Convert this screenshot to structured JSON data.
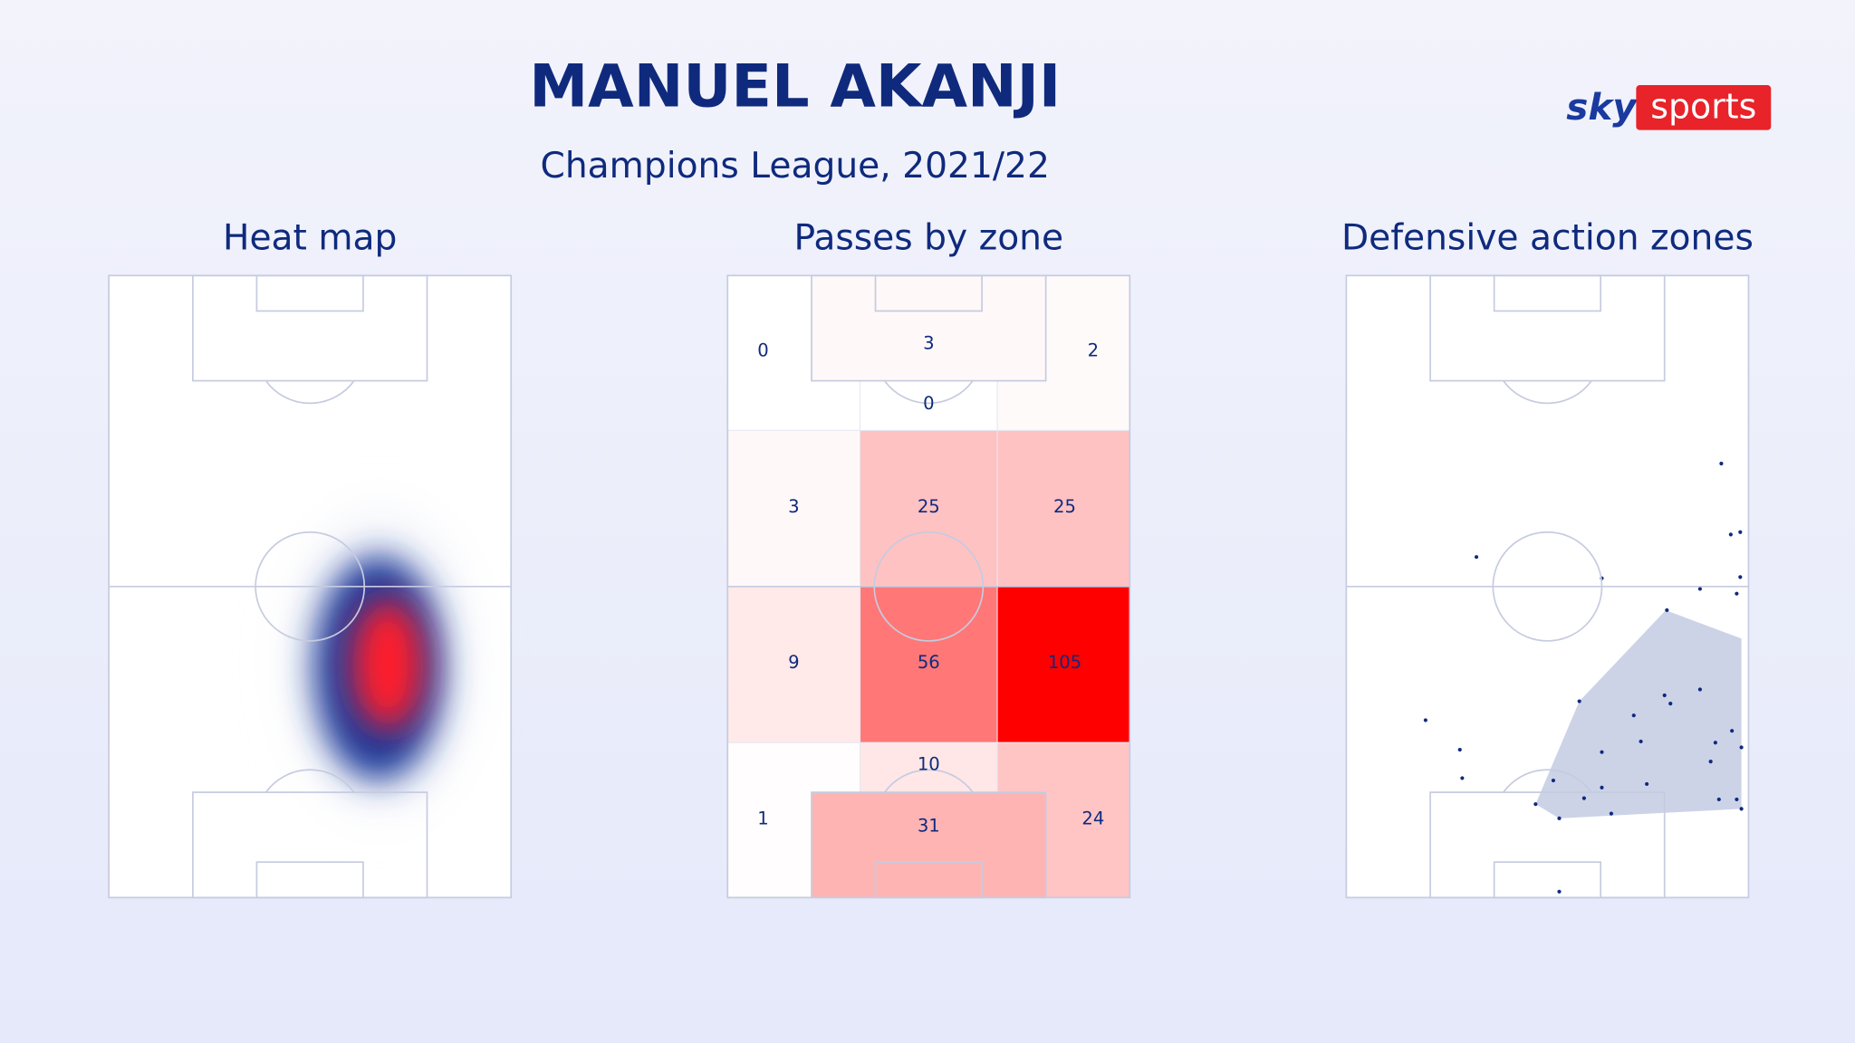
{
  "header": {
    "title": "MANUEL AKANJI",
    "subtitle": "Champions League, 2021/22",
    "brand": [
      "sky",
      "sports"
    ]
  },
  "panels": {
    "heat_map": {
      "title": "Heat map"
    },
    "passes": {
      "title": "Passes by zone",
      "zones": [
        0,
        3,
        0,
        2,
        3,
        25,
        25,
        9,
        56,
        105,
        1,
        10,
        24,
        31
      ]
    },
    "defensive": {
      "title": "Defensive action zones"
    }
  }
}
